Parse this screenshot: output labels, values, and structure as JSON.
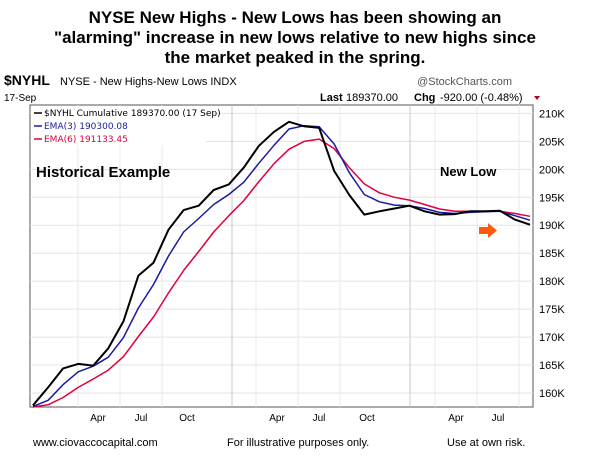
{
  "headline": {
    "line1": "NYSE New Highs - New Lows has been showing an",
    "line2": "\"alarming\" increase in new lows relative to new highs since",
    "line3": "the market peaked in the spring."
  },
  "chart_header": {
    "symbol": "$NYHL",
    "name": "NYSE - New Highs-New Lows INDX",
    "brand": "@StockCharts.com",
    "date": "17-Sep",
    "last_label": "Last",
    "last_value": "189370.00",
    "chg_label": "Chg",
    "chg_value": "-920.00 (-0.48%)"
  },
  "footer": {
    "website": "www.ciovaccocapital.com",
    "disclaimer": "For illustrative purposes only.",
    "risk": "Use at own risk."
  },
  "chart_data": {
    "type": "line",
    "legend": [
      {
        "text": "$NYHL Cumulative 189370.00 (17 Sep)",
        "color": "#000000"
      },
      {
        "text": "EMA(3) 190300.08",
        "color": "#1a1aa0"
      },
      {
        "text": "EMA(6) 191133.45",
        "color": "#e0003c"
      }
    ],
    "legend_position": "top-left",
    "annotations": [
      {
        "text": "Historical Example"
      },
      {
        "text": "New Low"
      }
    ],
    "x_ticks": [
      "Apr",
      "Jul",
      "Oct",
      "Apr",
      "Jul",
      "Oct",
      "Apr",
      "Jul"
    ],
    "y_ticks": [
      "160K",
      "165K",
      "170K",
      "175K",
      "180K",
      "185K",
      "190K",
      "195K",
      "200K",
      "205K",
      "210K"
    ],
    "y_tick_values": [
      160000,
      165000,
      170000,
      175000,
      180000,
      185000,
      190000,
      195000,
      200000,
      205000,
      210000
    ],
    "ylim": [
      157500,
      211500
    ],
    "grid": true,
    "colors": {
      "price": "#000000",
      "ema3": "#1a1aa0",
      "ema6": "#e0003c",
      "arrow": "#ff5a0a"
    },
    "series": [
      {
        "key": "price",
        "values": [
          157800,
          161000,
          164400,
          165200,
          164900,
          168000,
          172800,
          181000,
          183300,
          189200,
          192700,
          193500,
          196300,
          197300,
          200300,
          204200,
          206700,
          208500,
          207700,
          207400,
          199700,
          195400,
          191900,
          192500,
          193000,
          193500,
          192500,
          191900,
          192000,
          192500,
          192500,
          192600,
          191000,
          190100
        ]
      },
      {
        "key": "ema3",
        "values": [
          157600,
          158700,
          161500,
          163800,
          164800,
          166400,
          169900,
          175200,
          179400,
          184500,
          188800,
          191200,
          193700,
          195500,
          197700,
          201100,
          204300,
          207200,
          207800,
          207600,
          204500,
          199400,
          195500,
          194200,
          193600,
          193500,
          193000,
          192300,
          192100,
          192300,
          192400,
          192500,
          191700,
          190900
        ]
      },
      {
        "key": "ema6",
        "values": [
          157500,
          157900,
          159200,
          161000,
          162500,
          164100,
          166500,
          170100,
          173600,
          177900,
          181900,
          185300,
          188800,
          191700,
          194400,
          197800,
          201000,
          203600,
          205000,
          205400,
          203700,
          200300,
          197400,
          195800,
          195000,
          194500,
          193700,
          192900,
          192500,
          192500,
          192500,
          192500,
          192100,
          191600
        ]
      }
    ],
    "x_positions_note": "",
    "new_low_arrow": true
  }
}
